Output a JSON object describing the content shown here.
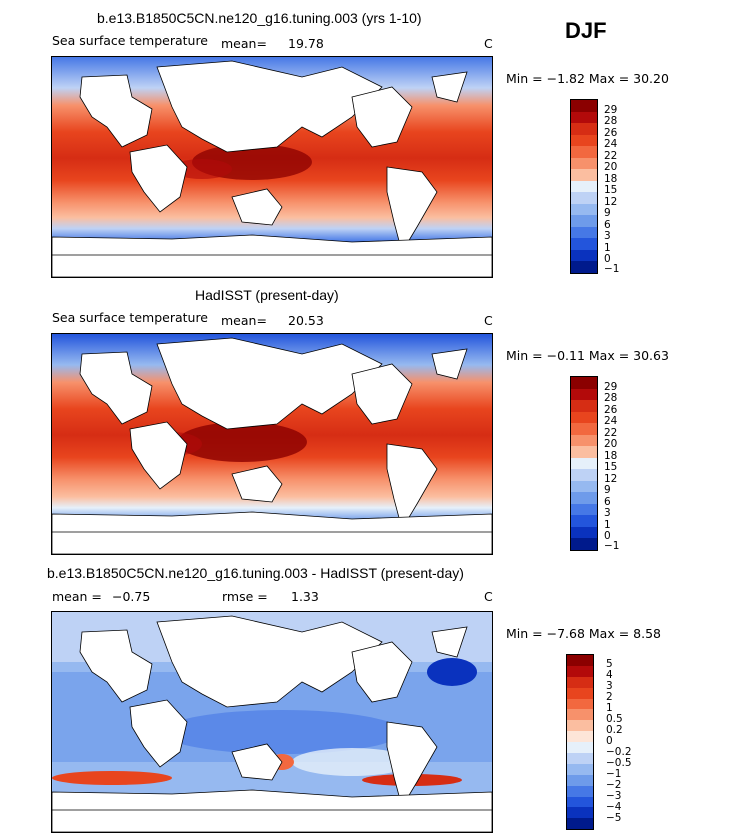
{
  "season": "DJF",
  "panels": [
    {
      "title": "b.e13.B1850C5CN.ne120_g16.tuning.003 (yrs 1-10)",
      "variable": "Sea surface temperature",
      "stat1_label": "mean=",
      "stat1_value": "19.78",
      "stat2_label": "",
      "stat2_value": "",
      "units": "C",
      "minmax": "Min =   −1.82 Max =   30.20",
      "levels": [
        "29",
        "28",
        "26",
        "24",
        "22",
        "20",
        "18",
        "15",
        "12",
        "9",
        "6",
        "3",
        "1",
        "0",
        "−1"
      ]
    },
    {
      "title": "HadISST (present-day)",
      "variable": "Sea surface temperature",
      "stat1_label": "mean=",
      "stat1_value": "20.53",
      "stat2_label": "",
      "stat2_value": "",
      "units": "C",
      "minmax": "Min =   −0.11 Max =   30.63",
      "levels": [
        "29",
        "28",
        "26",
        "24",
        "22",
        "20",
        "18",
        "15",
        "12",
        "9",
        "6",
        "3",
        "1",
        "0",
        "−1"
      ]
    },
    {
      "title": "b.e13.B1850C5CN.ne120_g16.tuning.003 - HadISST (present-day)",
      "variable": "",
      "stat1_label": "mean =",
      "stat1_value": "−0.75",
      "stat2_label": "rmse =",
      "stat2_value": "1.33",
      "units": "C",
      "minmax": "Min =   −7.68 Max =    8.58",
      "levels": [
        "5",
        "4",
        "3",
        "2",
        "1",
        "0.5",
        "0.2",
        "0",
        "−0.2",
        "−0.5",
        "−1",
        "−2",
        "−3",
        "−4",
        "−5"
      ]
    }
  ],
  "colors": {
    "abs_scale": [
      "#8b0000",
      "#b30a0a",
      "#d62d14",
      "#e8451e",
      "#f2683f",
      "#f7916b",
      "#fbbea0",
      "#e6f0fa",
      "#bed2f5",
      "#96b9f0",
      "#6e9bea",
      "#4678e6",
      "#2355dc",
      "#0a32be",
      "#001a8c"
    ],
    "diff_scale": [
      "#8b0000",
      "#b30a0a",
      "#d62d14",
      "#e8451e",
      "#f2683f",
      "#f7916b",
      "#fbbea0",
      "#fde5d8",
      "#e6f0fa",
      "#bed2f5",
      "#96b9f0",
      "#6e9bea",
      "#4678e6",
      "#2355dc",
      "#0a32be",
      "#001a8c"
    ],
    "land": "#ffffff",
    "coast": "#000000"
  }
}
